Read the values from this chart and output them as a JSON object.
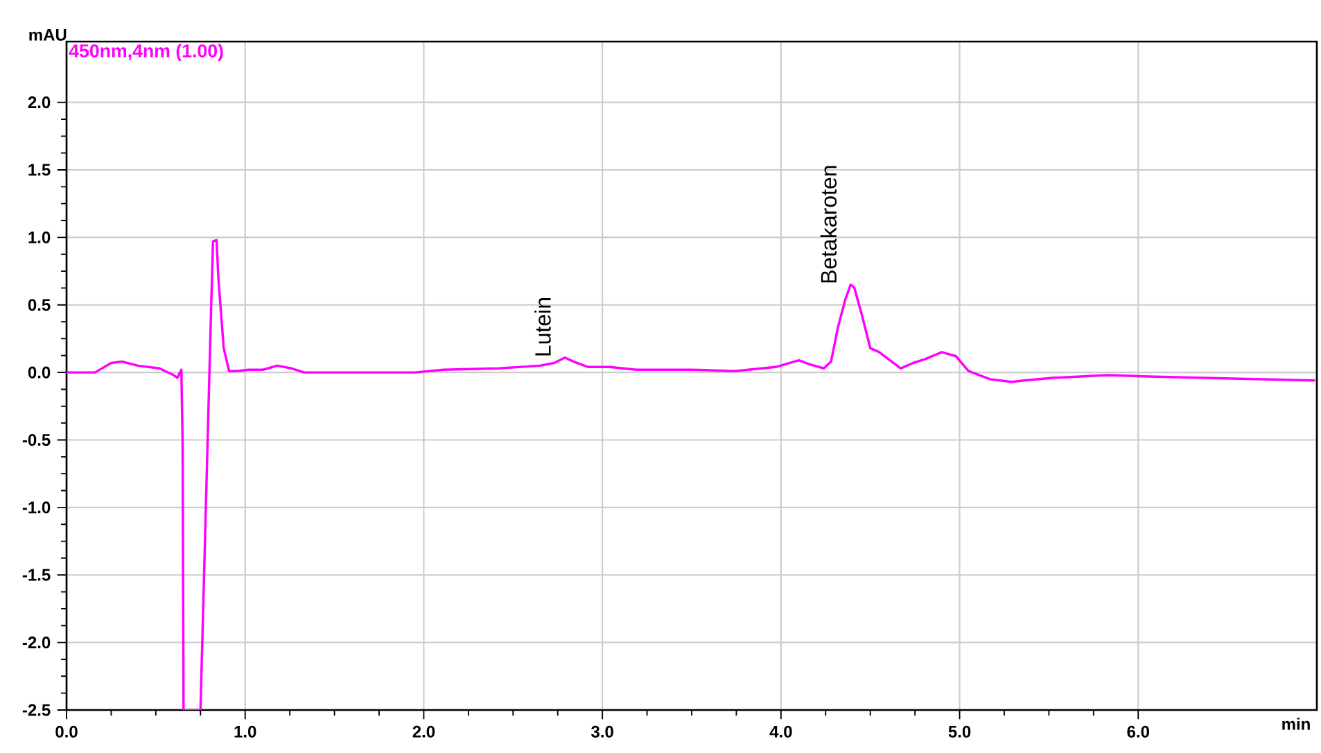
{
  "chart_data": {
    "type": "line",
    "xlabel": "min",
    "ylabel": "mAU",
    "x": [
      0,
      0.16,
      0.25,
      0.31,
      0.4,
      0.52,
      0.6,
      0.62,
      0.64,
      0.643,
      0.65,
      0.655,
      0.75,
      0.77,
      0.79,
      0.81,
      0.82,
      0.84,
      0.85,
      0.88,
      0.91,
      0.95,
      1.02,
      1.1,
      1.18,
      1.26,
      1.33,
      1.57,
      1.95,
      2.11,
      2.42,
      2.65,
      2.73,
      2.79,
      2.84,
      2.92,
      3.04,
      3.19,
      3.5,
      3.74,
      3.97,
      4.1,
      4.16,
      4.24,
      4.28,
      4.32,
      4.36,
      4.39,
      4.41,
      4.45,
      4.5,
      4.55,
      4.59,
      4.67,
      4.74,
      4.81,
      4.9,
      4.98,
      5.05,
      5.17,
      5.29,
      5.36,
      5.52,
      5.83,
      6.06,
      6.37,
      6.68,
      6.99
    ],
    "series": [
      {
        "name": "450nm,4nm  (1.00)",
        "color": "#ff00ff",
        "values": [
          0,
          0,
          0.07,
          0.08,
          0.05,
          0.03,
          -0.02,
          -0.04,
          0.01,
          0.02,
          -0.53,
          -2.5,
          -2.5,
          -1.5,
          -0.5,
          0.5,
          0.97,
          0.98,
          0.7,
          0.18,
          0.01,
          0.01,
          0.02,
          0.02,
          0.05,
          0.03,
          0.0,
          0.0,
          0.0,
          0.02,
          0.03,
          0.05,
          0.07,
          0.11,
          0.08,
          0.04,
          0.04,
          0.02,
          0.02,
          0.01,
          0.04,
          0.09,
          0.06,
          0.03,
          0.08,
          0.34,
          0.54,
          0.65,
          0.63,
          0.44,
          0.18,
          0.15,
          0.11,
          0.03,
          0.07,
          0.1,
          0.15,
          0.12,
          0.01,
          -0.05,
          -0.07,
          -0.06,
          -0.04,
          -0.02,
          -0.03,
          -0.04,
          -0.05,
          -0.06
        ]
      }
    ],
    "annotations": [
      {
        "text": "Lutein",
        "x": 2.79,
        "y": 0.11
      },
      {
        "text": "Betakaroten",
        "x": 4.39,
        "y": 0.65
      }
    ],
    "xlim": [
      0,
      7.0
    ],
    "ylim": [
      -2.5,
      2.45
    ],
    "xticks": [
      {
        "value": 0,
        "label": "0.0"
      },
      {
        "value": 1,
        "label": "1.0"
      },
      {
        "value": 2,
        "label": "2.0"
      },
      {
        "value": 3,
        "label": "3.0"
      },
      {
        "value": 4,
        "label": "4.0"
      },
      {
        "value": 5,
        "label": "5.0"
      },
      {
        "value": 6,
        "label": "6.0"
      }
    ],
    "yticks": [
      {
        "value": -2.5,
        "label": "-2.5"
      },
      {
        "value": -2,
        "label": "-2.0"
      },
      {
        "value": -1.5,
        "label": "-1.5"
      },
      {
        "value": -1,
        "label": "-1.0"
      },
      {
        "value": -0.5,
        "label": "-0.5"
      },
      {
        "value": 0,
        "label": "0.0"
      },
      {
        "value": 0.5,
        "label": "0.5"
      },
      {
        "value": 1,
        "label": "1.0"
      },
      {
        "value": 1.5,
        "label": "1.5"
      },
      {
        "value": 2,
        "label": "2.0"
      }
    ],
    "grid": true,
    "legend": "top left",
    "marker": "none",
    "line_style": "solid"
  }
}
